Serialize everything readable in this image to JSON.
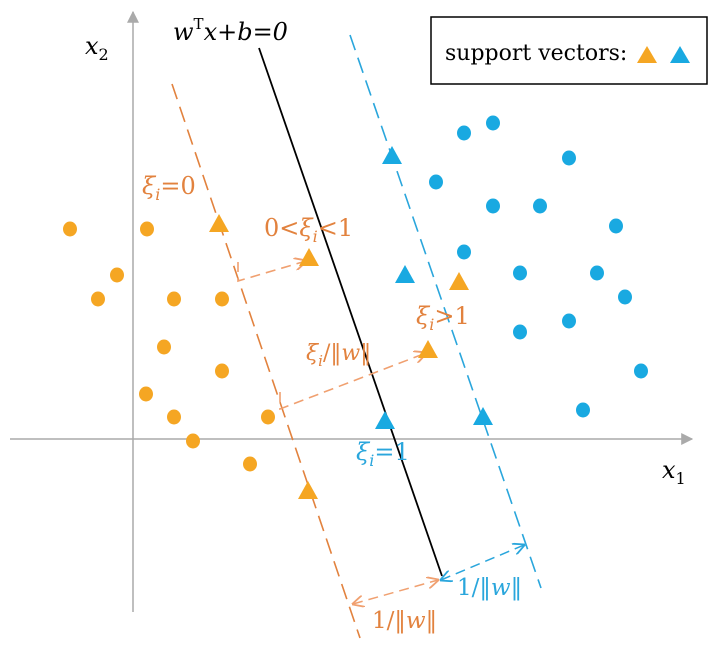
{
  "colors": {
    "orange": "#f5a623",
    "orange_line": "#e2823e",
    "blue": "#19a9e1",
    "blue_line": "#2aa6dc",
    "axis": "#aaaaaa",
    "boundary": "#000000"
  },
  "axes": {
    "x_label_main": "x",
    "x_label_sub": "1",
    "y_label_main": "x",
    "y_label_sub": "2"
  },
  "legend": {
    "label": "support vectors:"
  },
  "labels": {
    "decision_boundary": {
      "w": "w",
      "T": "T",
      "rest": "x+b=0"
    },
    "xi_zero": {
      "xi": "ξ",
      "i": "i",
      "rest": "=0"
    },
    "xi_between": {
      "pre": "0<",
      "xi": "ξ",
      "i": "i",
      "rest": "<1"
    },
    "xi_greater": {
      "xi": "ξ",
      "i": "i",
      "rest": ">1"
    },
    "xi_over_norm": {
      "xi": "ξ",
      "i": "i",
      "slash": "/‖",
      "w": "w",
      "close": "‖"
    },
    "xi_one": {
      "xi": "ξ",
      "i": "i",
      "rest": "=1"
    },
    "margin_blue": {
      "pre": "1/‖",
      "w": "w",
      "close": "‖"
    },
    "margin_orange": {
      "pre": "1/‖",
      "w": "w",
      "close": "‖"
    }
  },
  "points": {
    "orange_circles": [
      [
        70,
        229
      ],
      [
        147,
        229
      ],
      [
        117,
        275
      ],
      [
        98,
        299
      ],
      [
        174,
        299
      ],
      [
        222,
        299
      ],
      [
        164,
        347
      ],
      [
        222,
        371
      ],
      [
        146,
        394
      ],
      [
        174,
        417
      ],
      [
        268,
        417
      ],
      [
        193,
        441
      ],
      [
        250,
        464
      ]
    ],
    "orange_triangles": [
      [
        219,
        224
      ],
      [
        309,
        258
      ],
      [
        459,
        282
      ],
      [
        428,
        350
      ],
      [
        308,
        491
      ]
    ],
    "blue_circles": [
      [
        464,
        133
      ],
      [
        493,
        123
      ],
      [
        569,
        158
      ],
      [
        436,
        182
      ],
      [
        493,
        206
      ],
      [
        540,
        206
      ],
      [
        616,
        226
      ],
      [
        464,
        252
      ],
      [
        520,
        273
      ],
      [
        597,
        273
      ],
      [
        625,
        297
      ],
      [
        520,
        332
      ],
      [
        569,
        321
      ],
      [
        641,
        371
      ],
      [
        583,
        410
      ]
    ],
    "blue_triangles": [
      [
        392,
        156
      ],
      [
        405,
        275
      ],
      [
        385,
        421
      ],
      [
        483,
        417
      ]
    ]
  }
}
